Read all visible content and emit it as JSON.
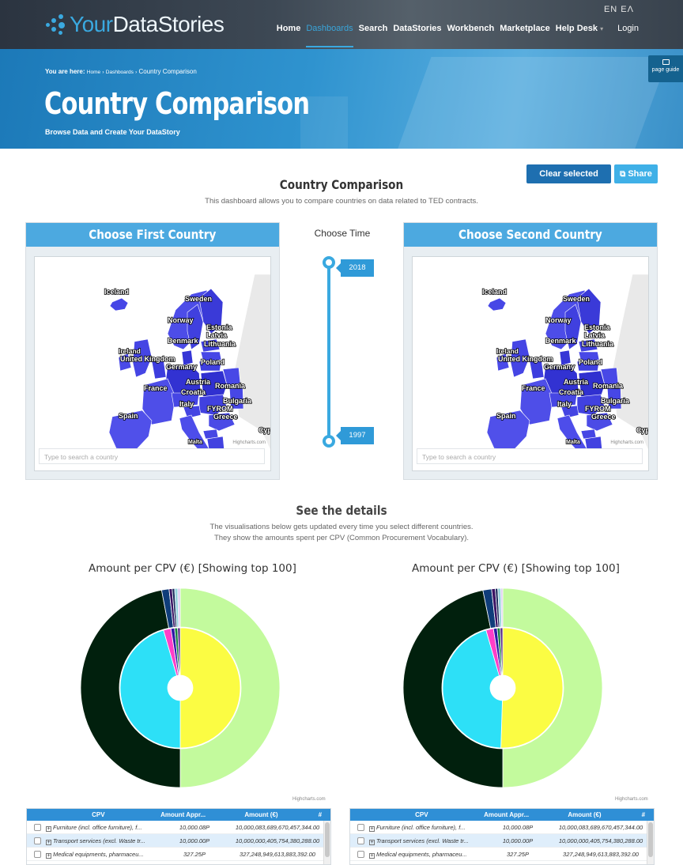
{
  "header": {
    "logo_part1": "Your",
    "logo_part2": "DataStories",
    "lang": "EN  EΛ",
    "nav": [
      "Home",
      "Dashboards",
      "Search",
      "DataStories",
      "Workbench",
      "Marketplace",
      "Help Desk"
    ],
    "help_caret": "▾",
    "login": "Login"
  },
  "hero": {
    "breadcrumb_label": "You are here:",
    "breadcrumb_home": "Home",
    "breadcrumb_dashboards": "Dashboards",
    "breadcrumb_current": "Country Comparison",
    "title": "Country Comparison",
    "subtitle": "Browse Data and Create Your DataStory",
    "page_guide": "page guide"
  },
  "actions": {
    "clear": "Clear selected filters",
    "share": "Share"
  },
  "content": {
    "title": "Country Comparison",
    "description": "This dashboard allows you to compare countries on data related to TED contracts."
  },
  "maps": {
    "first_title": "Choose First Country",
    "second_title": "Choose Second Country",
    "search_placeholder": "Type to search a country",
    "credit": "Highcharts.com",
    "labels": [
      "Iceland",
      "Sweden",
      "Norway",
      "Estonia",
      "Latvia",
      "Lithuania",
      "Denmark",
      "Ireland",
      "United Kingdom",
      "Poland",
      "Germany",
      "Austria",
      "Romania",
      "France",
      "Croatia",
      "Italy",
      "Bulgaria",
      "FYROM",
      "Greece",
      "Spain",
      "Cyprus",
      "Malta"
    ]
  },
  "time": {
    "label": "Choose Time",
    "start": "2018",
    "end": "1997"
  },
  "details": {
    "title": "See the details",
    "line1": "The visualisations below gets updated every time you select different countries.",
    "line2": "They show the amounts spent per CPV (Common Procurement Vocabulary)."
  },
  "chart_data": [
    {
      "type": "pie",
      "title": "Amount per CPV (€) [Showing top 100]",
      "credit": "Highcharts.com",
      "outer": {
        "values": [
          50.0,
          47.0,
          1.2,
          0.5,
          0.4,
          0.5,
          0.4
        ],
        "colors": [
          "#c3fa9d",
          "#01200d",
          "#0f3d7a",
          "#3b1464",
          "#1a2a5c",
          "#96d2dc",
          "#dcc8f0"
        ]
      },
      "inner": {
        "values": [
          50.0,
          45.5,
          2.0,
          1.0,
          0.8,
          0.7
        ],
        "colors": [
          "#fbfc43",
          "#2de0f7",
          "#ff3ec8",
          "#3018a6",
          "#1a8040",
          "#5a2a8a"
        ]
      }
    },
    {
      "type": "pie",
      "title": "Amount per CPV (€) [Showing top 100]",
      "credit": "Highcharts.com",
      "outer": {
        "values": [
          50.0,
          46.8,
          1.4,
          0.6,
          0.4,
          0.5,
          0.3
        ],
        "colors": [
          "#c3fa9d",
          "#01200d",
          "#0f3d7a",
          "#3b1464",
          "#1a2a5c",
          "#96d2dc",
          "#dcc8f0"
        ]
      },
      "inner": {
        "values": [
          50.5,
          45.0,
          2.0,
          1.0,
          0.8,
          0.7
        ],
        "colors": [
          "#fbfc43",
          "#2de0f7",
          "#ff3ec8",
          "#3018a6",
          "#1a8040",
          "#5a2a8a"
        ]
      }
    }
  ],
  "table": {
    "headers": [
      "CPV",
      "Amount Appr...",
      "Amount (€)",
      "#"
    ],
    "rows": [
      {
        "cpv": "Furniture (incl. office furniture), f...",
        "approx": "10,000.08P",
        "amount": "10,000,083,689,670,457,344.00"
      },
      {
        "cpv": "Transport services (excl. Waste tr...",
        "approx": "10,000.00P",
        "amount": "10,000,000,405,754,380,288.00"
      },
      {
        "cpv": "Medical equipments, pharmaceu...",
        "approx": "327.25P",
        "amount": "327,248,949,613,883,392.00"
      }
    ]
  }
}
